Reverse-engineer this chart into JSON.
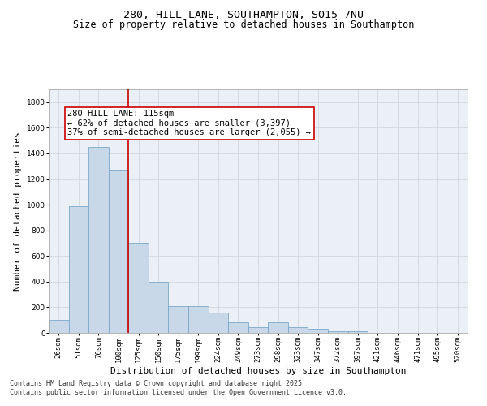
{
  "title_line1": "280, HILL LANE, SOUTHAMPTON, SO15 7NU",
  "title_line2": "Size of property relative to detached houses in Southampton",
  "xlabel": "Distribution of detached houses by size in Southampton",
  "ylabel": "Number of detached properties",
  "categories": [
    "26sqm",
    "51sqm",
    "76sqm",
    "100sqm",
    "125sqm",
    "150sqm",
    "175sqm",
    "199sqm",
    "224sqm",
    "249sqm",
    "273sqm",
    "298sqm",
    "323sqm",
    "347sqm",
    "372sqm",
    "397sqm",
    "421sqm",
    "446sqm",
    "471sqm",
    "495sqm",
    "520sqm"
  ],
  "values": [
    100,
    990,
    1450,
    1270,
    700,
    400,
    210,
    210,
    160,
    80,
    45,
    80,
    45,
    30,
    10,
    10,
    0,
    0,
    0,
    0,
    0
  ],
  "bar_color": "#c8d8e8",
  "bar_edge_color": "#7aa8cc",
  "vline_x_index": 3.5,
  "vline_color": "#cc0000",
  "annotation_text": "280 HILL LANE: 115sqm\n← 62% of detached houses are smaller (3,397)\n37% of semi-detached houses are larger (2,055) →",
  "annotation_box_color": "#ffffff",
  "annotation_box_edge_color": "#cc0000",
  "ylim": [
    0,
    1900
  ],
  "yticks": [
    0,
    200,
    400,
    600,
    800,
    1000,
    1200,
    1400,
    1600,
    1800
  ],
  "grid_color": "#d0d8e0",
  "background_color": "#eaf0f6",
  "footer_line1": "Contains HM Land Registry data © Crown copyright and database right 2025.",
  "footer_line2": "Contains public sector information licensed under the Open Government Licence v3.0.",
  "title_fontsize": 9.5,
  "subtitle_fontsize": 8.5,
  "xlabel_fontsize": 8,
  "ylabel_fontsize": 8,
  "tick_fontsize": 6.5,
  "annotation_fontsize": 7.5,
  "footer_fontsize": 6
}
